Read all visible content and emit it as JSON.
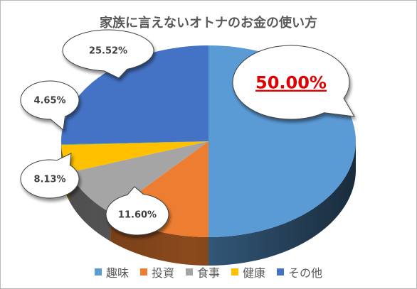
{
  "chart_data": {
    "type": "pie",
    "title": "家族に言えないオトナのお金の使い方",
    "categories": [
      "趣味",
      "投資",
      "食事",
      "健康",
      "",
      "その他"
    ],
    "values": [
      50.0,
      11.6,
      8.13,
      4.65,
      0.1,
      25.52
    ],
    "labels": [
      "50.00%",
      "11.60%",
      "8.13%",
      "4.65%",
      "",
      "25.52%"
    ],
    "colors": [
      "#5b9bd5",
      "#ed7d31",
      "#a5a5a5",
      "#ffc000",
      "#70ad47",
      "#4472c4"
    ],
    "highlight_label": {
      "text": "50.00%",
      "color": "#e00000",
      "underline": true
    },
    "legend": {
      "position": "bottom",
      "items": [
        {
          "name": "趣味",
          "color": "#5b9bd5"
        },
        {
          "name": "投資",
          "color": "#ed7d31"
        },
        {
          "name": "食事",
          "color": "#a5a5a5"
        },
        {
          "name": "健康",
          "color": "#ffc000"
        },
        {
          "name": "その他",
          "color": "#4472c4"
        }
      ]
    },
    "style": "3d-pie"
  }
}
